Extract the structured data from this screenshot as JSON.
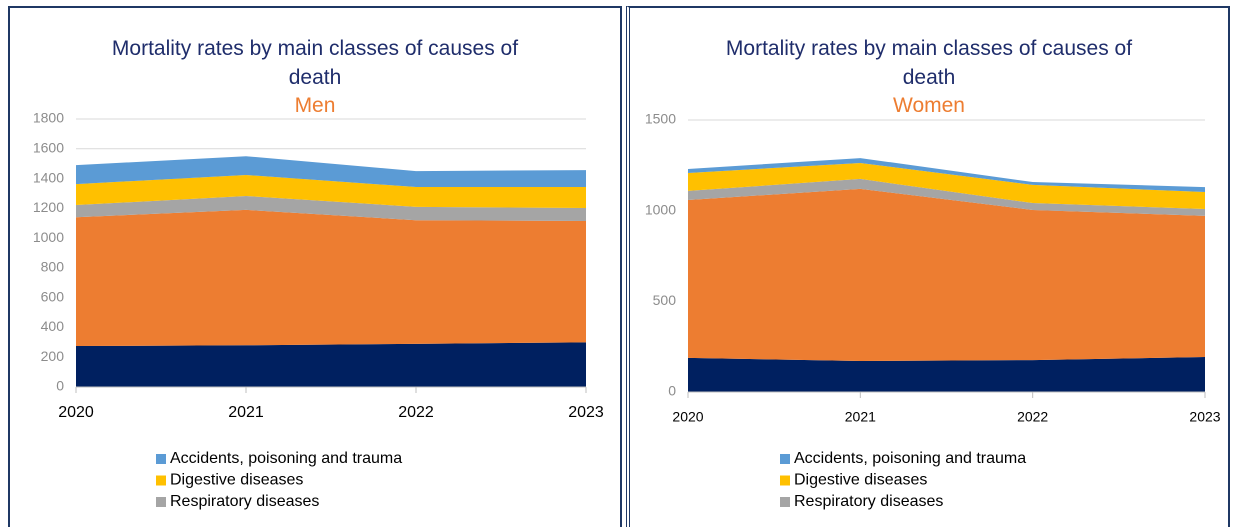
{
  "chart_data": [
    {
      "type": "area",
      "title": "Mortality rates by main classes of causes of death",
      "subtitle": "Men",
      "categories": [
        "2020",
        "2021",
        "2022",
        "2023"
      ],
      "series": [
        {
          "color": "#002060",
          "values": [
            275,
            280,
            290,
            300
          ]
        },
        {
          "color": "#ed7d31",
          "values": [
            865,
            910,
            830,
            815
          ]
        },
        {
          "name": "Respiratory diseases",
          "color": "#a5a5a5",
          "values": [
            82,
            93,
            90,
            87
          ]
        },
        {
          "name": "Digestive diseases",
          "color": "#ffc000",
          "values": [
            141,
            141,
            133,
            141
          ]
        },
        {
          "name": "Accidents, poisoning and trauma",
          "color": "#5b9bd5",
          "values": [
            127,
            126,
            107,
            114
          ]
        }
      ],
      "ylim": [
        0,
        1800
      ],
      "yticks": [
        0,
        200,
        400,
        600,
        800,
        1000,
        1200,
        1400,
        1600,
        1800
      ],
      "grid": true,
      "stacked": true
    },
    {
      "type": "area",
      "title": "Mortality rates by main classes of causes of death",
      "subtitle": "Women",
      "categories": [
        "2020",
        "2021",
        "2022",
        "2023"
      ],
      "series": [
        {
          "color": "#002060",
          "values": [
            188,
            171,
            176,
            193
          ]
        },
        {
          "color": "#ed7d31",
          "values": [
            871,
            949,
            828,
            778
          ]
        },
        {
          "name": "Respiratory diseases",
          "color": "#a5a5a5",
          "values": [
            50,
            55,
            38,
            38
          ]
        },
        {
          "name": "Digestive diseases",
          "color": "#ffc000",
          "values": [
            99,
            88,
            100,
            94
          ]
        },
        {
          "name": "Accidents, poisoning and trauma",
          "color": "#5b9bd5",
          "values": [
            22,
            27,
            16,
            27
          ]
        }
      ],
      "ylim": [
        0,
        1500
      ],
      "yticks": [
        0,
        500,
        1000,
        1500
      ],
      "grid": true,
      "stacked": true
    }
  ]
}
